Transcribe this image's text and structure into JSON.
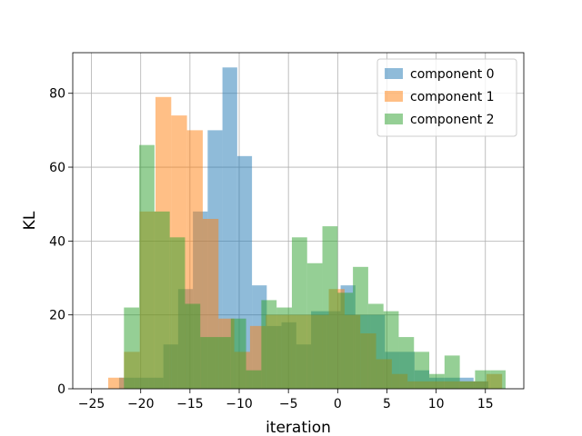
{
  "chart_data": {
    "type": "bar",
    "subtype": "overlapping-histogram",
    "title": "",
    "xlabel": "iteration",
    "ylabel": "KL",
    "xlim": [
      -26.9,
      18.9
    ],
    "ylim": [
      0,
      91
    ],
    "xticks": [
      -25,
      -20,
      -15,
      -10,
      -5,
      0,
      5,
      10,
      15
    ],
    "yticks": [
      0,
      20,
      40,
      60,
      80
    ],
    "grid": true,
    "legend_position": "top-right",
    "bar_opacity": 0.5,
    "series": [
      {
        "name": "component 0",
        "color": "#1f77b4",
        "bin_start": -22.2,
        "bin_width": 1.5,
        "values": [
          3,
          3,
          3,
          12,
          27,
          48,
          70,
          87,
          63,
          28,
          17,
          18,
          12,
          21,
          21,
          28,
          20,
          20,
          10,
          10,
          5,
          3,
          3,
          3,
          2
        ]
      },
      {
        "name": "component 1",
        "color": "#ff7f0e",
        "bin_start": -23.3,
        "bin_width": 1.6,
        "values": [
          3,
          10,
          48,
          79,
          74,
          70,
          46,
          19,
          10,
          17,
          20,
          20,
          20,
          20,
          27,
          20,
          15,
          8,
          4,
          2,
          2,
          2,
          2,
          2,
          4
        ]
      },
      {
        "name": "component 2",
        "color": "#2ca02c",
        "bin_start": -21.7,
        "bin_width": 1.55,
        "values": [
          22,
          66,
          48,
          41,
          23,
          14,
          14,
          19,
          5,
          24,
          22,
          41,
          34,
          44,
          26,
          33,
          23,
          21,
          14,
          10,
          4,
          9,
          2,
          5,
          5
        ]
      }
    ]
  }
}
